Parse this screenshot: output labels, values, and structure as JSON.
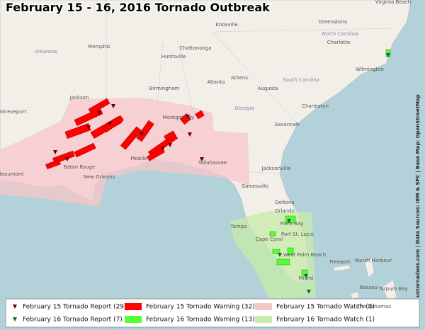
{
  "title": "February 15 - 16, 2016 Tornado Outbreak",
  "credit": "ustornadoes.com | Data Sources: IEM & SPC | Base Map: OpenStreetMap",
  "places": [
    "Memphis",
    "Knoxville",
    "Greensboro",
    "Virginia Beach",
    "Charlotte",
    "North Carolina",
    "Wilmington",
    "Huntsville",
    "Chattanooga",
    "Arkansas",
    "Birmingham",
    "Atlanta",
    "Athens",
    "Augusta",
    "South Carolina",
    "Charleston",
    "Georgia",
    "Savannah",
    "Montgomery",
    "Shreveport",
    "Jackson",
    "Mobile",
    "Tallahassee",
    "Baton Rouge",
    "Beaumont",
    "New Orleans",
    "Jacksonville",
    "Gainesville",
    "Deltona",
    "Orlando",
    "Palm Bay",
    "Tampa",
    "Port St. Lucie",
    "West Palm Beach",
    "Cape Coral",
    "Miami",
    "Freeport",
    "Marsh Harbour",
    "Nassau",
    "Tarpum Bay",
    "The Bahamas"
  ],
  "legend": [
    "February 15 Tornado Report (29)",
    "February 15 Tornado Warning (32)",
    "February 15 Tornado Watch (3)",
    "February 16 Tornado Report (7)",
    "February 16 Tornado Warning (13)",
    "February 16 Tornado Watch (1)"
  ]
}
